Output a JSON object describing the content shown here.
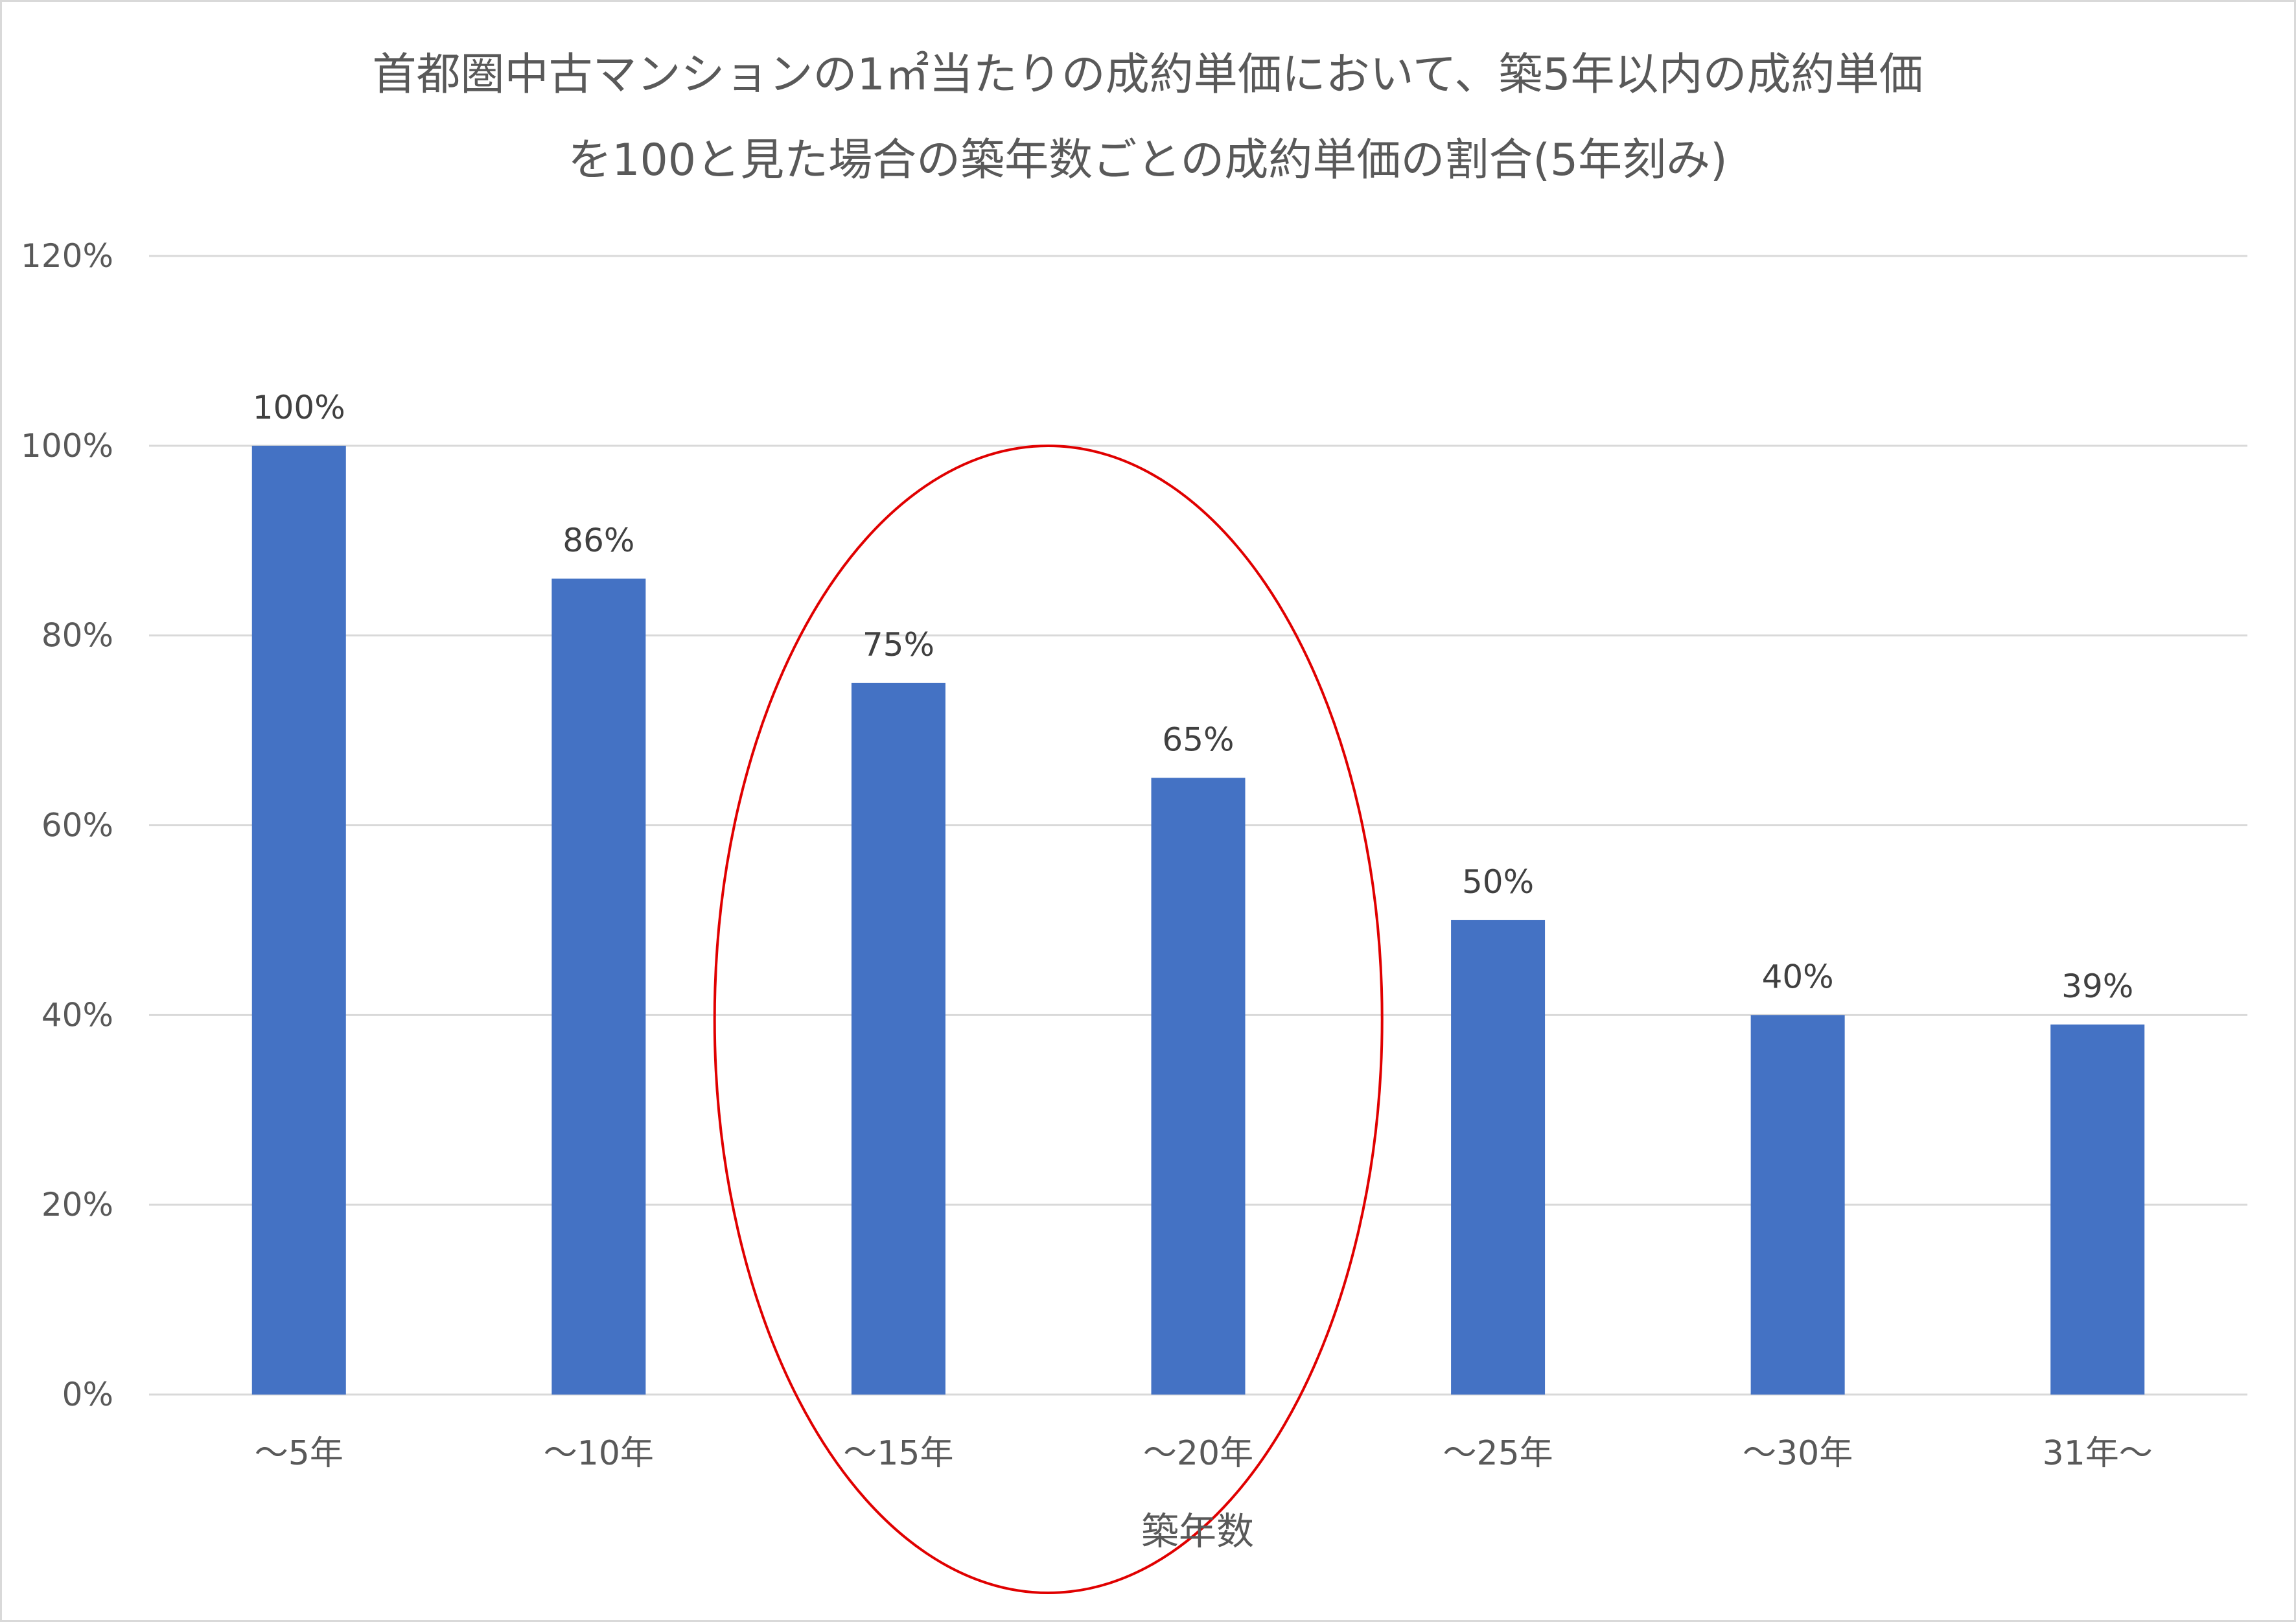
{
  "chart_data": {
    "type": "bar",
    "title_lines": [
      "首都圏中古マンションの1㎡当たりの成約単価において、築5年以内の成約単価",
      "を100と見た場合の築年数ごとの成約単価の割合(5年刻み)"
    ],
    "xlabel": "築年数",
    "ylabel": "",
    "categories": [
      "～5年",
      "～10年",
      "～15年",
      "～20年",
      "～25年",
      "～30年",
      "31年～"
    ],
    "values": [
      100,
      86,
      75,
      65,
      50,
      40,
      39
    ],
    "data_labels": [
      "100%",
      "86%",
      "75%",
      "65%",
      "50%",
      "40%",
      "39%"
    ],
    "y_ticks": [
      "0%",
      "20%",
      "40%",
      "60%",
      "80%",
      "100%",
      "120%"
    ],
    "ylim": [
      0,
      120
    ],
    "grid": true,
    "legend": "none",
    "highlight": {
      "shape": "ellipse",
      "covers_categories": [
        "～15年",
        "～20年"
      ],
      "color": "#e00000"
    },
    "colors": {
      "bar": "#4472c4",
      "grid": "#d9d9d9",
      "text": "#595959"
    }
  }
}
